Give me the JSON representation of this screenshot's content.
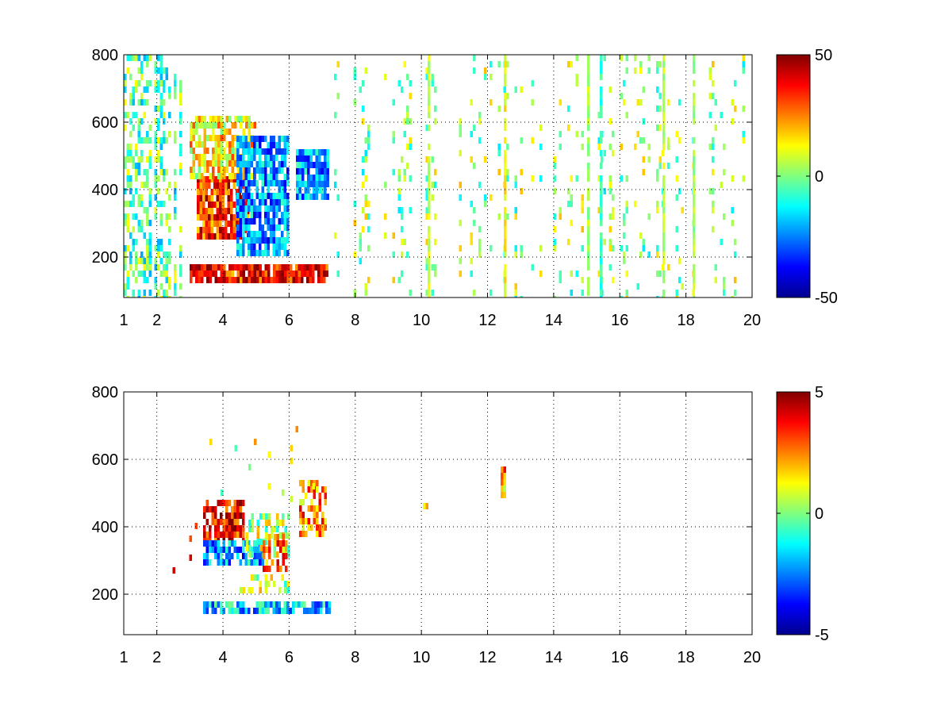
{
  "chart_data": [
    {
      "type": "heatmap",
      "title": "",
      "xlabel": "",
      "ylabel": "",
      "xlim": [
        1,
        20
      ],
      "ylim": [
        80,
        800
      ],
      "x_ticks": [
        1,
        2,
        4,
        6,
        8,
        10,
        12,
        14,
        16,
        18,
        20
      ],
      "x_tick_labels": [
        "1",
        "2",
        "4",
        "6",
        "8",
        "10",
        "12",
        "14",
        "16",
        "18",
        "20"
      ],
      "y_ticks": [
        200,
        400,
        600,
        800
      ],
      "y_tick_labels": [
        "200",
        "400",
        "600",
        "800"
      ],
      "grid": true,
      "colormap": "jet",
      "clim": [
        -50,
        50
      ],
      "colorbar_ticks": [
        50,
        0,
        -50
      ],
      "colorbar_tick_labels": [
        "50",
        "0",
        "-50"
      ],
      "colorbar_placement": "right",
      "blank_color": "#ffffff",
      "regions": [
        {
          "x": [
            1,
            3
          ],
          "y": [
            80,
            800
          ],
          "value": -4,
          "density": 0.45,
          "note": "sparse stripes"
        },
        {
          "x": [
            3.2,
            4.8
          ],
          "y": [
            260,
            440
          ],
          "value": 32,
          "density": 0.9
        },
        {
          "x": [
            3,
            5
          ],
          "y": [
            440,
            620
          ],
          "value": 14,
          "density": 0.75
        },
        {
          "x": [
            4.4,
            6
          ],
          "y": [
            220,
            560
          ],
          "value": -24,
          "density": 0.8
        },
        {
          "x": [
            6.2,
            7.2
          ],
          "y": [
            380,
            520
          ],
          "value": -22,
          "density": 0.85
        },
        {
          "x": [
            3,
            7.2
          ],
          "y": [
            140,
            180
          ],
          "value": 36,
          "density": 0.9
        },
        {
          "x": [
            7.2,
            20
          ],
          "y": [
            80,
            800
          ],
          "value": 2,
          "density": 0.18,
          "note": "sparse scatter"
        }
      ],
      "vertical_bands": [
        {
          "x": 10.2,
          "value": 8
        },
        {
          "x": 12.5,
          "value": 12
        },
        {
          "x": 15.0,
          "value": 4
        },
        {
          "x": 15.4,
          "value": -8
        },
        {
          "x": 17.3,
          "value": 6
        },
        {
          "x": 18.2,
          "value": 4
        }
      ]
    },
    {
      "type": "heatmap",
      "title": "",
      "xlabel": "",
      "ylabel": "",
      "xlim": [
        1,
        20
      ],
      "ylim": [
        80,
        800
      ],
      "x_ticks": [
        1,
        2,
        4,
        6,
        8,
        10,
        12,
        14,
        16,
        18,
        20
      ],
      "x_tick_labels": [
        "1",
        "2",
        "4",
        "6",
        "8",
        "10",
        "12",
        "14",
        "16",
        "18",
        "20"
      ],
      "y_ticks": [
        200,
        400,
        600,
        800
      ],
      "y_tick_labels": [
        "200",
        "400",
        "600",
        "800"
      ],
      "grid": true,
      "colormap": "jet",
      "clim": [
        -5,
        5
      ],
      "colorbar_ticks": [
        5,
        0,
        -5
      ],
      "colorbar_tick_labels": [
        "5",
        "0",
        "-5"
      ],
      "colorbar_placement": "right",
      "blank_color": "#ffffff",
      "regions": [
        {
          "x": [
            3.4,
            4.6
          ],
          "y": [
            360,
            480
          ],
          "value": 3.8,
          "density": 0.75
        },
        {
          "x": [
            3.4,
            5.2
          ],
          "y": [
            300,
            360
          ],
          "value": -2.2,
          "density": 0.8
        },
        {
          "x": [
            4.6,
            6
          ],
          "y": [
            320,
            440
          ],
          "value": 0.5,
          "density": 0.55
        },
        {
          "x": [
            5.2,
            6
          ],
          "y": [
            280,
            380
          ],
          "value": 2.5,
          "density": 0.55
        },
        {
          "x": [
            6.3,
            7.1
          ],
          "y": [
            380,
            540
          ],
          "value": 2.4,
          "density": 0.65
        },
        {
          "x": [
            3.4,
            7.2
          ],
          "y": [
            150,
            180
          ],
          "value": -1.8,
          "density": 0.8
        },
        {
          "x": [
            4.5,
            6
          ],
          "y": [
            210,
            260
          ],
          "value": 0.6,
          "density": 0.45
        },
        {
          "x": [
            2.4,
            3.2
          ],
          "y": [
            110,
            450
          ],
          "value": 3.5,
          "density": 0.08
        },
        {
          "x": [
            3.6,
            6.8
          ],
          "y": [
            480,
            700
          ],
          "value": 1,
          "density": 0.12
        },
        {
          "x": [
            12.4,
            12.55
          ],
          "y": [
            500,
            580
          ],
          "value": 2.2,
          "density": 0.9
        },
        {
          "x": [
            10.05,
            10.2
          ],
          "y": [
            460,
            470
          ],
          "value": 2.5,
          "density": 1.0
        }
      ],
      "vertical_bands": []
    }
  ]
}
